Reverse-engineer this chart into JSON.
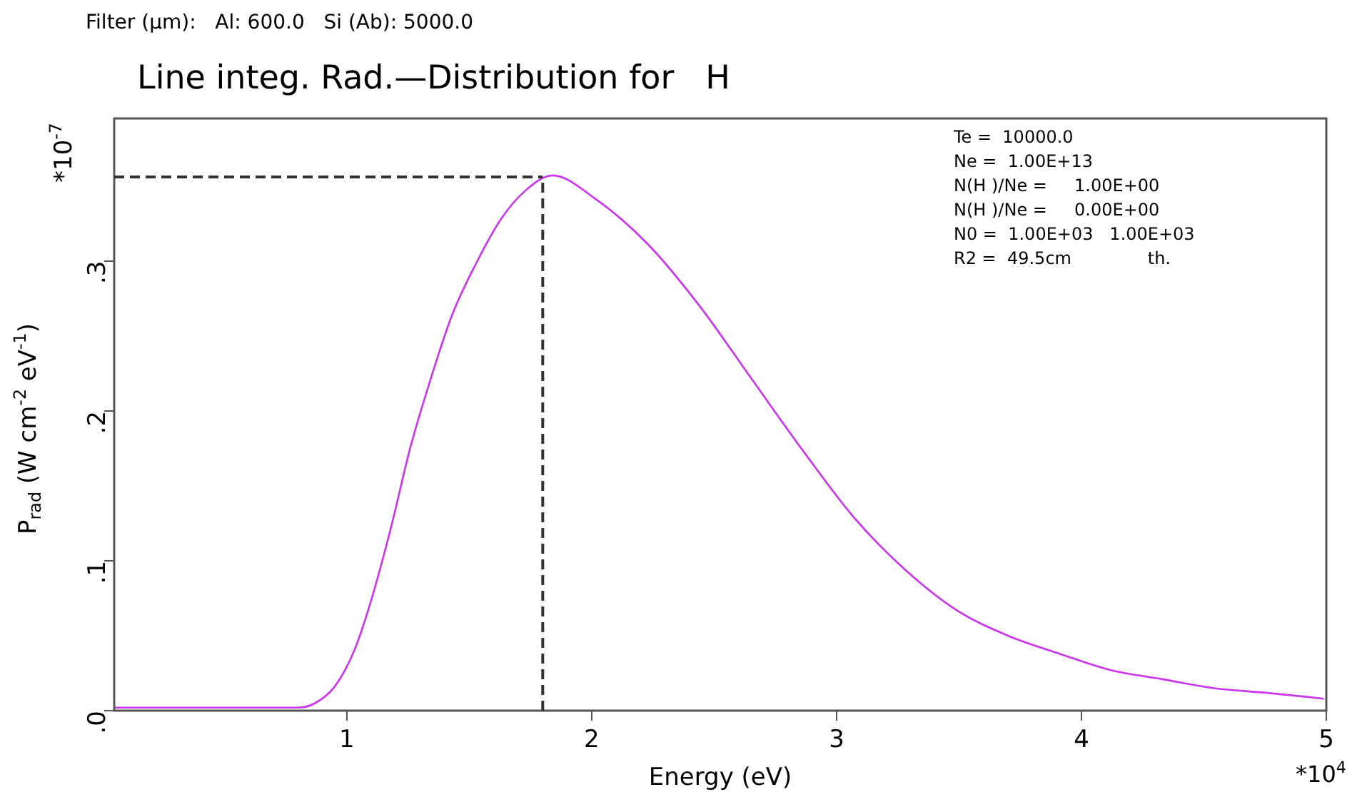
{
  "chart_data": {
    "type": "line",
    "title": "Line integ. Rad.—Distribution for   H",
    "subtitle": "Filter (μm):   Al: 600.0   Si (Ab): 5000.0",
    "xlabel": "Energy (eV)",
    "ylabel": "P$_{rad}$ (W cm$^{-2}$ eV$^{-1}$)",
    "x": [
      0.05,
      0.8,
      0.87,
      0.95,
      1.03,
      1.1,
      1.18,
      1.26,
      1.34,
      1.43,
      1.53,
      1.63,
      1.73,
      1.84,
      2.01,
      2.23,
      2.44,
      2.65,
      2.86,
      3.07,
      3.28,
      3.49,
      3.7,
      3.91,
      4.12,
      4.33,
      4.54,
      4.75,
      4.99
    ],
    "series": [
      {
        "color": "#cc33ee",
        "values": [
          0.002,
          0.002,
          0.005,
          0.016,
          0.04,
          0.074,
          0.122,
          0.176,
          0.22,
          0.264,
          0.299,
          0.328,
          0.347,
          0.357,
          0.342,
          0.311,
          0.27,
          0.222,
          0.174,
          0.129,
          0.094,
          0.067,
          0.05,
          0.038,
          0.027,
          0.021,
          0.015,
          0.012,
          0.008
        ]
      }
    ],
    "xlim": [
      0.05,
      5
    ],
    "xticks": [
      1,
      2,
      3,
      4,
      5
    ],
    "ylim": [
      0,
      0.395
    ],
    "yticks": [
      {
        "value": 0,
        "label": ".0"
      },
      {
        "value": 0.1,
        "label": ".1"
      },
      {
        "value": 0.2,
        "label": ".2"
      },
      {
        "value": 0.3,
        "label": ".3"
      }
    ],
    "ref_lines": [
      {
        "axis": "x",
        "value": 1.8,
        "color": "#333333",
        "line_style": "dashed"
      },
      {
        "axis": "y",
        "value": 0.356,
        "color": "#333333",
        "line_style": "dashed"
      }
    ],
    "grid": false,
    "legend": false,
    "marker": "none",
    "line_style": "solid",
    "annotations": [
      "Te =  10000.0",
      "Ne =  1.00E+13",
      "N(H )/Ne =     1.00E+00",
      "N(H )/Ne =     0.00E+00",
      "N0 =  1.00E+03   1.00E+03",
      "R2 =  49.5cm              th.",
      "*10$^{4}$",
      "*10$^{-7}$"
    ]
  }
}
